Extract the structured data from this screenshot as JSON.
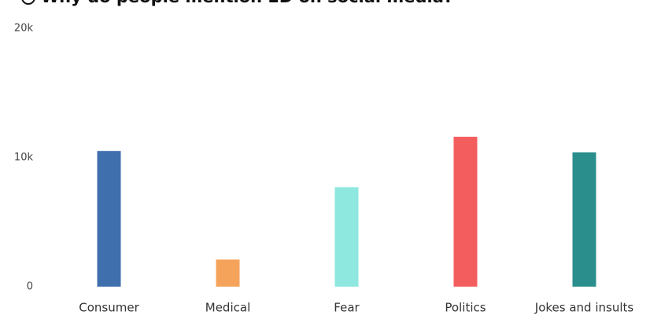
{
  "chart_data": {
    "type": "bar",
    "title": "Why do people mention ED on social media?",
    "categories": [
      "Consumer",
      "Medical",
      "Fear",
      "Politics",
      "Jokes and insults"
    ],
    "values": [
      10500,
      2100,
      7700,
      11600,
      10400
    ],
    "colors": [
      "#3f6fad",
      "#f5a35b",
      "#8ee8df",
      "#f45d5d",
      "#2a8f8c"
    ],
    "ylim": [
      0,
      20000
    ],
    "yticks": [
      0,
      {
        "value": 10000,
        "label": "10k"
      },
      {
        "value": 20000,
        "label": "20k"
      }
    ],
    "grid": false
  }
}
